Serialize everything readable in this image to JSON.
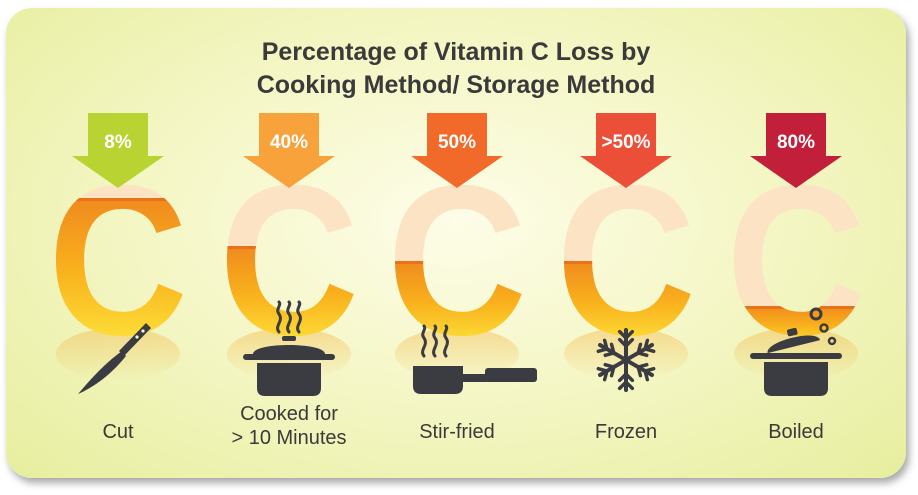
{
  "chart_data": {
    "type": "infographic",
    "title_lines": [
      "Percentage of Vitamin C Loss by",
      "Cooking Method/ Storage Method"
    ],
    "categories": [
      "Cut",
      "Cooked for\n> 10 Minutes",
      "Stir-fried",
      "Frozen",
      "Boiled"
    ],
    "values": [
      8,
      40,
      50,
      50,
      80
    ],
    "value_labels": [
      "8%",
      "40%",
      "50%",
      ">50%",
      "80%"
    ],
    "unit": "%",
    "icons": [
      "knife-icon",
      "steaming-pot-icon",
      "frying-pan-icon",
      "snowflake-icon",
      "boiling-pot-icon"
    ],
    "arrow_colors": [
      "#b9d432",
      "#f7a23a",
      "#f26a2a",
      "#ec4f38",
      "#c21f3a"
    ],
    "fill_gradient": [
      "#fde23a",
      "#f9b21d",
      "#f08a1e"
    ],
    "empty_color": "#fbe3c4",
    "icon_color": "#3a3c41"
  }
}
